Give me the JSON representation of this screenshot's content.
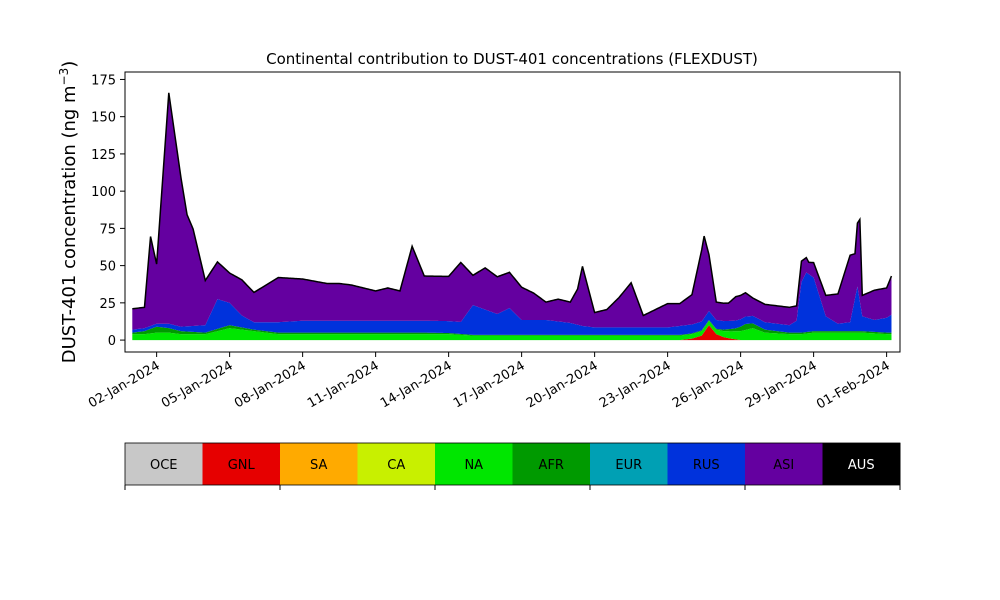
{
  "chart_data": {
    "type": "area",
    "stacked": true,
    "title": "Continental contribution to DUST-401 concentrations (FLEXDUST)",
    "ylabel_main": "DUST-401 concentration (ng m",
    "ylabel_sup": "−3",
    "ylabel_end": ")",
    "xlabel": "",
    "ylim": [
      -8,
      180
    ],
    "xlim": [
      -0.3,
      31.55
    ],
    "y_ticks": [
      0,
      25,
      50,
      75,
      100,
      125,
      150,
      175
    ],
    "x_ticks": [
      {
        "x": 1,
        "label": "02-Jan-2024"
      },
      {
        "x": 4,
        "label": "05-Jan-2024"
      },
      {
        "x": 7,
        "label": "08-Jan-2024"
      },
      {
        "x": 10,
        "label": "11-Jan-2024"
      },
      {
        "x": 13,
        "label": "14-Jan-2024"
      },
      {
        "x": 16,
        "label": "17-Jan-2024"
      },
      {
        "x": 19,
        "label": "20-Jan-2024"
      },
      {
        "x": 22,
        "label": "23-Jan-2024"
      },
      {
        "x": 25,
        "label": "26-Jan-2024"
      },
      {
        "x": 28,
        "label": "29-Jan-2024"
      },
      {
        "x": 31,
        "label": "01-Feb-2024"
      }
    ],
    "x_unit": "days since 01-Jan-2024 00:00",
    "grid": false,
    "legend_position": "bottom colorbar",
    "categories": [
      "OCE",
      "GNL",
      "SA",
      "CA",
      "NA",
      "AFR",
      "EUR",
      "RUS",
      "ASI",
      "AUS"
    ],
    "colors": [
      "#c8c8c8",
      "#e60000",
      "#ffaa00",
      "#c8f000",
      "#00e600",
      "#009a00",
      "#00a0b4",
      "#0032dc",
      "#6400a0",
      "#000000"
    ],
    "series": [
      {
        "name": "GNL",
        "x": [
          0,
          15,
          16,
          20,
          20.5,
          21,
          21.5,
          22.5,
          23,
          23.4,
          23.7,
          24.0,
          24.3,
          24.6,
          25,
          31.2
        ],
        "values": [
          0,
          0,
          0,
          0,
          0,
          0,
          0,
          0,
          1,
          3,
          10,
          4,
          2,
          1,
          0,
          0
        ]
      },
      {
        "name": "NA",
        "x": [
          0,
          0.5,
          1,
          1.5,
          2,
          3,
          4,
          6,
          8,
          9,
          9.5,
          10,
          11,
          12,
          13,
          14,
          15,
          16,
          18,
          20,
          21,
          22,
          23,
          24,
          24.3,
          25,
          25.5,
          26,
          27,
          27.5,
          28,
          29,
          30,
          31,
          31.2
        ],
        "values": [
          4,
          4,
          5,
          5,
          4,
          4,
          8,
          4,
          4,
          4,
          4,
          4,
          4,
          4,
          4,
          3,
          3,
          3,
          3,
          3,
          3,
          3,
          3,
          3,
          4,
          6,
          8,
          5,
          4,
          4,
          5,
          5,
          5,
          4,
          4
        ]
      },
      {
        "name": "AFR",
        "x": [
          0,
          0.5,
          1,
          1.5,
          2,
          3,
          4,
          5,
          6,
          8,
          10,
          12,
          14,
          16,
          18,
          20,
          22,
          24,
          24.8,
          25.2,
          25.6,
          26,
          27,
          28,
          29,
          30,
          31,
          31.2
        ],
        "values": [
          1,
          2,
          4,
          3,
          2,
          1,
          2,
          1,
          1,
          1,
          1,
          1,
          0.5,
          0.5,
          0.5,
          0.5,
          0.5,
          0.5,
          2,
          4,
          3,
          2,
          1,
          1,
          1,
          1,
          1,
          1
        ]
      },
      {
        "name": "RUS",
        "x": [
          0,
          1,
          1.5,
          2,
          3,
          3.5,
          4,
          4.5,
          5,
          6,
          7,
          8,
          9,
          9.5,
          10,
          11,
          11.5,
          12,
          12.5,
          13,
          13.5,
          14,
          15,
          15.5,
          16,
          17,
          18,
          18.5,
          19,
          19.5,
          20,
          20.5,
          21,
          21.5,
          22,
          22.5,
          23,
          24,
          25,
          26,
          27,
          27.3,
          27.5,
          27.7,
          28,
          28.5,
          29,
          29.5,
          29.8,
          30,
          30.5,
          31,
          31.2
        ],
        "values": [
          2,
          2,
          3,
          3,
          5,
          20,
          15,
          8,
          5,
          7,
          8,
          8,
          8,
          8,
          8,
          8,
          8,
          8,
          8,
          8,
          8,
          20,
          14,
          18,
          10,
          10,
          8,
          6,
          5,
          5,
          5,
          5,
          5,
          5,
          5,
          6,
          6,
          6,
          5,
          5,
          5,
          8,
          34,
          40,
          36,
          10,
          5,
          6,
          30,
          10,
          8,
          10,
          12
        ]
      },
      {
        "name": "ASI",
        "x": [
          0,
          0.5,
          0.75,
          1,
          1.5,
          2,
          2.25,
          2.5,
          3,
          3.5,
          4,
          4.5,
          5,
          6,
          7,
          8,
          8.5,
          9,
          9.5,
          10,
          10.5,
          11,
          11.5,
          12,
          12.5,
          13,
          13.5,
          14,
          14.5,
          15,
          15.5,
          16,
          16.5,
          17,
          17.5,
          18,
          18.3,
          18.5,
          19,
          19.5,
          20,
          20.5,
          21,
          21.5,
          22,
          22.5,
          23,
          23.5,
          24,
          24.5,
          24.8,
          25.2,
          25.5,
          26,
          26.5,
          27,
          27.3,
          27.5,
          27.8,
          28,
          28.5,
          29,
          29.5,
          29.7,
          29.9,
          30,
          30.5,
          31,
          31.2
        ],
        "values": [
          14,
          14,
          60,
          40,
          155,
          100,
          75,
          65,
          30,
          25,
          20,
          24,
          20,
          30,
          28,
          25,
          25,
          24,
          22,
          20,
          22,
          20,
          50,
          30,
          30,
          30,
          40,
          20,
          28,
          25,
          24,
          22,
          18,
          12,
          15,
          14,
          24,
          40,
          10,
          12,
          20,
          30,
          8,
          12,
          16,
          15,
          20,
          55,
          12,
          12,
          16,
          16,
          12,
          12,
          12,
          12,
          10,
          14,
          8,
          10,
          14,
          20,
          45,
          30,
          55,
          14,
          20,
          20,
          26
        ]
      }
    ]
  },
  "figure": {
    "background": "#ffffff",
    "total_line_color": "#000000"
  }
}
